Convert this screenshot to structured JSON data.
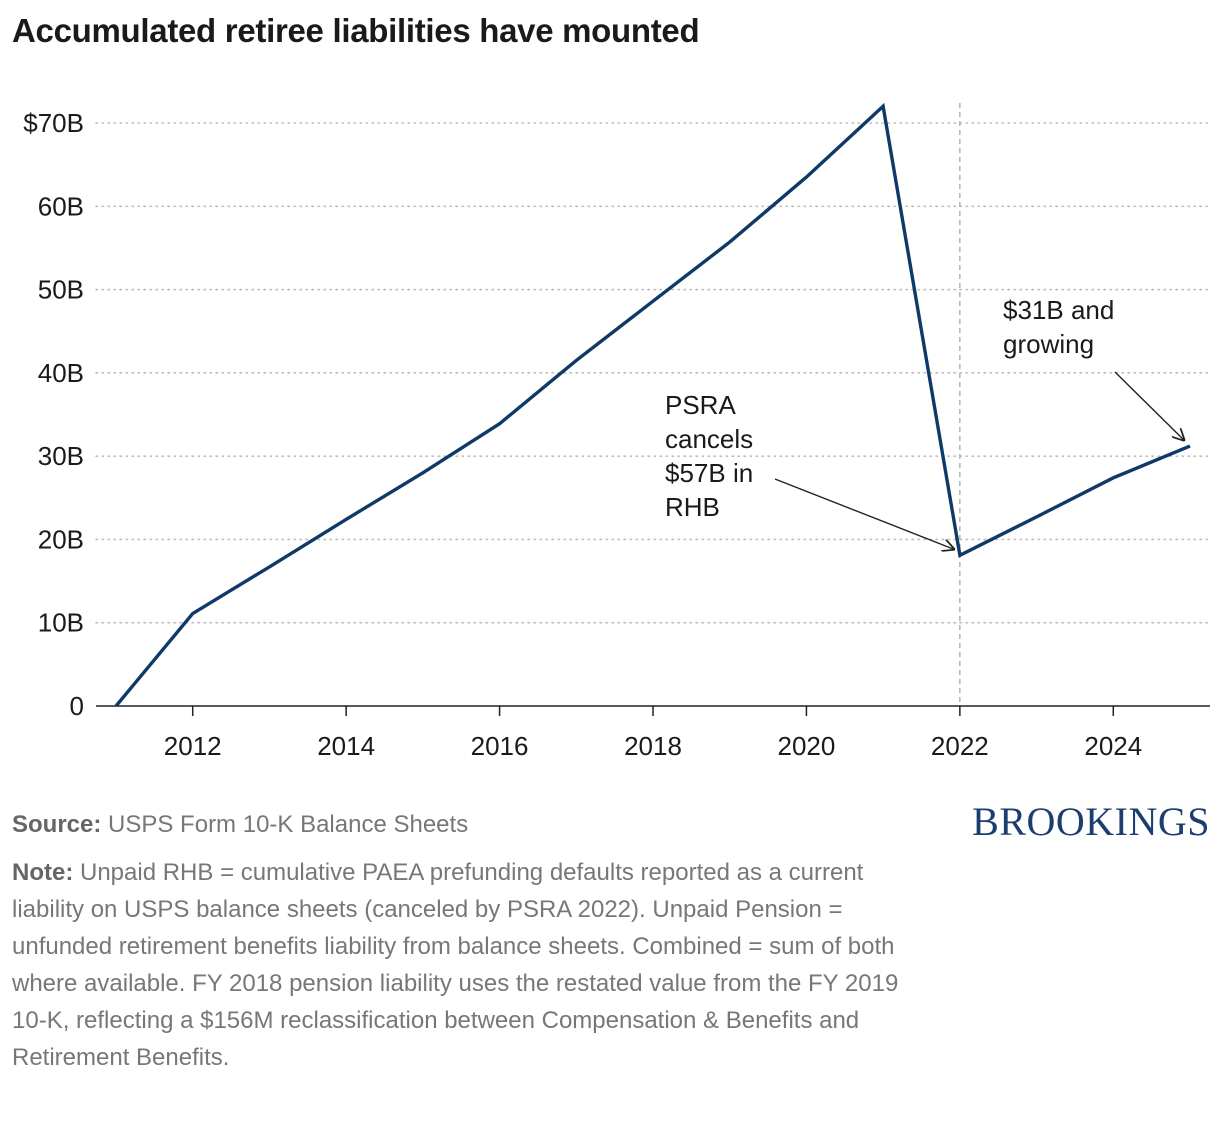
{
  "title": "Accumulated retiree liabilities have mounted",
  "source_label": "Source:",
  "source_text": "USPS Form 10-K Balance Sheets",
  "note_label": "Note:",
  "note_text": "Unpaid RHB = cumulative PAEA prefunding defaults reported as a current liability on USPS balance sheets (canceled by PSRA 2022). Unpaid Pension = unfunded retirement benefits liability from balance sheets. Combined = sum of both where available. FY 2018 pension liability uses the restated value from the FY 2019 10-K, reflecting a $156M reclassification between Compensation & Benefits and Retirement Benefits.",
  "logo_text": "BROOKINGS",
  "colors": {
    "line": "#0f3a68",
    "grid": "#bfbfbf",
    "axis": "#222222",
    "refline": "#b3b3b3",
    "logo": "#1b3e6f"
  },
  "chart_data": {
    "type": "line",
    "title": "Accumulated retiree liabilities have mounted",
    "xlabel": "",
    "ylabel": "",
    "xlim": [
      2011,
      2025
    ],
    "ylim": [
      0,
      70
    ],
    "x_ticks": [
      2012,
      2014,
      2016,
      2018,
      2020,
      2022,
      2024
    ],
    "x_tick_labels": [
      "2012",
      "2014",
      "2016",
      "2018",
      "2020",
      "2022",
      "2024"
    ],
    "y_ticks": [
      0,
      10,
      20,
      30,
      40,
      50,
      60,
      70
    ],
    "y_tick_labels": [
      "0",
      "10B",
      "20B",
      "30B",
      "40B",
      "50B",
      "60B",
      "$70B"
    ],
    "grid": "horizontal dotted",
    "x": [
      2011,
      2012,
      2013,
      2014,
      2015,
      2016,
      2017,
      2018,
      2019,
      2020,
      2021,
      2022,
      2023,
      2024,
      2025
    ],
    "series": [
      {
        "values": [
          0,
          11.1,
          16.7,
          22.4,
          28.0,
          33.9,
          41.5,
          48.6,
          55.7,
          63.5,
          72.0,
          18.1,
          22.7,
          27.4,
          31.2
        ]
      }
    ],
    "reference_lines": [
      {
        "x": 2022,
        "style": "dashed"
      }
    ],
    "annotations": [
      {
        "text_lines": [
          "PSRA",
          "cancels",
          "$57B in",
          "RHB"
        ],
        "arrow_to": {
          "x": 2022,
          "y": 18.1
        }
      },
      {
        "text_lines": [
          "$31B and",
          "growing"
        ],
        "arrow_to": {
          "x": 2025,
          "y": 31.2
        }
      }
    ]
  }
}
